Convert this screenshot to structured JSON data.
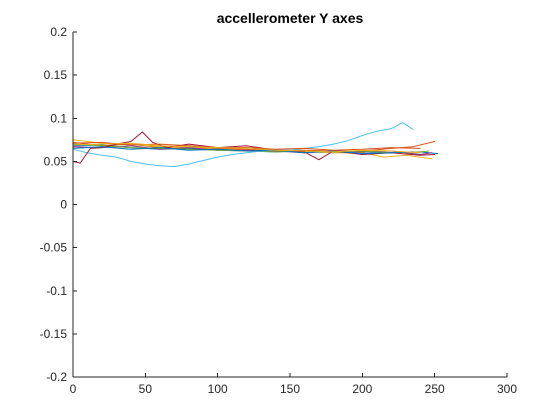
{
  "chart_data": {
    "type": "line",
    "title": "accellerometer Y axes",
    "xlabel": "",
    "ylabel": "",
    "xlim": [
      0,
      300
    ],
    "ylim": [
      -0.2,
      0.2
    ],
    "x_ticks": [
      0,
      50,
      100,
      150,
      200,
      250,
      300
    ],
    "x_tick_labels": [
      "0",
      "50",
      "100",
      "150",
      "200",
      "250",
      "300"
    ],
    "y_ticks": [
      0.2,
      0.15,
      0.1,
      0.05,
      0,
      -0.05,
      -0.1,
      -0.15,
      -0.2
    ],
    "y_tick_labels": [
      "0.2",
      "0.15",
      "0.1",
      "0.05",
      "0",
      "-0.05",
      "-0.1",
      "-0.15",
      "-0.2"
    ],
    "grid": false,
    "legend": "none",
    "series": [
      {
        "color": "#0072BD",
        "x": [
          0,
          20,
          40,
          60,
          80,
          100,
          120,
          140,
          160,
          180,
          200,
          220,
          240,
          252
        ],
        "y": [
          0.068,
          0.069,
          0.066,
          0.064,
          0.065,
          0.063,
          0.062,
          0.061,
          0.062,
          0.06,
          0.061,
          0.06,
          0.061,
          0.059
        ]
      },
      {
        "color": "#D95319",
        "x": [
          0,
          20,
          40,
          60,
          80,
          100,
          120,
          140,
          160,
          180,
          200,
          220,
          235,
          250
        ],
        "y": [
          0.072,
          0.068,
          0.07,
          0.066,
          0.067,
          0.065,
          0.064,
          0.063,
          0.063,
          0.062,
          0.062,
          0.065,
          0.067,
          0.073
        ]
      },
      {
        "color": "#EDB120",
        "x": [
          0,
          20,
          40,
          60,
          80,
          100,
          120,
          140,
          160,
          180,
          200,
          215,
          230,
          248
        ],
        "y": [
          0.075,
          0.071,
          0.07,
          0.067,
          0.066,
          0.064,
          0.063,
          0.062,
          0.061,
          0.06,
          0.06,
          0.055,
          0.057,
          0.053
        ]
      },
      {
        "color": "#7E2F8E",
        "x": [
          0,
          20,
          40,
          60,
          80,
          100,
          120,
          140,
          160,
          180,
          200,
          220,
          240,
          248
        ],
        "y": [
          0.067,
          0.066,
          0.068,
          0.064,
          0.066,
          0.063,
          0.063,
          0.062,
          0.06,
          0.062,
          0.061,
          0.062,
          0.058,
          0.06
        ]
      },
      {
        "color": "#77AC30",
        "x": [
          0,
          20,
          40,
          60,
          80,
          100,
          120,
          140,
          160,
          180,
          200,
          220,
          240,
          246
        ],
        "y": [
          0.07,
          0.068,
          0.066,
          0.065,
          0.064,
          0.063,
          0.062,
          0.061,
          0.062,
          0.061,
          0.062,
          0.06,
          0.061,
          0.062
        ]
      },
      {
        "color": "#4DBEEE",
        "x": [
          0,
          10,
          20,
          30,
          40,
          50,
          60,
          70,
          80,
          90,
          100,
          110,
          120,
          130,
          140,
          150,
          160,
          170,
          180,
          190,
          200,
          210,
          220,
          228,
          235
        ],
        "y": [
          0.064,
          0.06,
          0.057,
          0.055,
          0.05,
          0.047,
          0.045,
          0.044,
          0.047,
          0.051,
          0.055,
          0.058,
          0.06,
          0.062,
          0.063,
          0.063,
          0.065,
          0.067,
          0.07,
          0.074,
          0.08,
          0.085,
          0.088,
          0.095,
          0.087
        ]
      },
      {
        "color": "#A2142F",
        "x": [
          0,
          5,
          12,
          20,
          30,
          40,
          48,
          55,
          65,
          80,
          100,
          120,
          140,
          160,
          170,
          180,
          200,
          220,
          240,
          250
        ],
        "y": [
          0.05,
          0.048,
          0.065,
          0.066,
          0.07,
          0.073,
          0.084,
          0.072,
          0.066,
          0.07,
          0.066,
          0.068,
          0.063,
          0.061,
          0.052,
          0.062,
          0.058,
          0.06,
          0.057,
          0.058
        ]
      },
      {
        "color": "#0072BD",
        "x": [
          0,
          20,
          40,
          60,
          80,
          100,
          120,
          140,
          160,
          180,
          200,
          220,
          235
        ],
        "y": [
          0.065,
          0.067,
          0.064,
          0.066,
          0.063,
          0.064,
          0.062,
          0.063,
          0.06,
          0.062,
          0.059,
          0.06,
          0.061
        ]
      },
      {
        "color": "#D95319",
        "x": [
          0,
          20,
          40,
          60,
          80,
          100,
          120,
          140,
          160,
          180,
          200,
          220,
          240
        ],
        "y": [
          0.071,
          0.072,
          0.069,
          0.07,
          0.068,
          0.066,
          0.066,
          0.064,
          0.065,
          0.063,
          0.064,
          0.066,
          0.065
        ]
      },
      {
        "color": "#EDB120",
        "x": [
          0,
          20,
          40,
          60,
          80,
          100,
          120,
          140,
          160,
          180,
          200,
          220,
          240
        ],
        "y": [
          0.069,
          0.07,
          0.071,
          0.068,
          0.067,
          0.066,
          0.065,
          0.063,
          0.062,
          0.061,
          0.063,
          0.062,
          0.06
        ]
      }
    ]
  }
}
